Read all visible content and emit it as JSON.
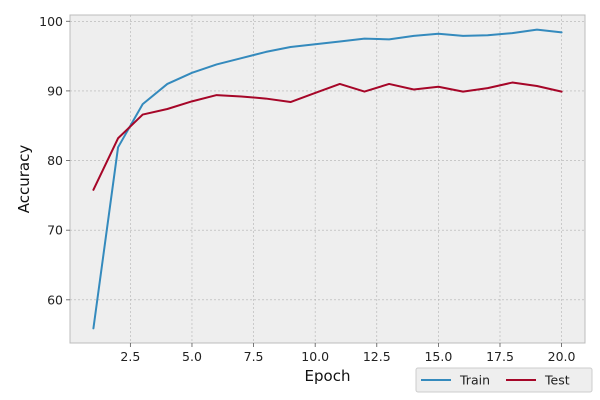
{
  "chart_data": {
    "type": "line",
    "xlabel": "Epoch",
    "ylabel": "Accuracy",
    "xlim": [
      0.05,
      20.95
    ],
    "ylim": [
      53.8,
      100.9
    ],
    "xticks": [
      2.5,
      5.0,
      7.5,
      10.0,
      12.5,
      15.0,
      17.5,
      20.0
    ],
    "xtick_labels": [
      "2.5",
      "5.0",
      "7.5",
      "10.0",
      "12.5",
      "15.0",
      "17.5",
      "20.0"
    ],
    "yticks": [
      60,
      70,
      80,
      90,
      100
    ],
    "ytick_labels": [
      "60",
      "70",
      "80",
      "90",
      "100"
    ],
    "grid": true,
    "legend": {
      "placement": "bottom-right, below plot",
      "ncol": 2
    },
    "x": [
      1,
      2,
      3,
      4,
      5,
      6,
      7,
      8,
      9,
      10,
      11,
      12,
      13,
      14,
      15,
      16,
      17,
      18,
      19,
      20
    ],
    "series": [
      {
        "name": "Train",
        "color": "#348ABD",
        "values": [
          55.9,
          81.9,
          88.1,
          91.0,
          92.6,
          93.8,
          94.7,
          95.6,
          96.3,
          96.7,
          97.1,
          97.5,
          97.4,
          97.9,
          98.2,
          97.9,
          98.0,
          98.3,
          98.8,
          98.4
        ]
      },
      {
        "name": "Test",
        "color": "#A60628",
        "values": [
          75.8,
          83.2,
          86.6,
          87.4,
          88.5,
          89.4,
          89.2,
          88.9,
          88.4,
          89.7,
          91.0,
          89.9,
          91.0,
          90.2,
          90.6,
          89.9,
          90.4,
          91.2,
          90.7,
          89.9
        ]
      }
    ]
  }
}
